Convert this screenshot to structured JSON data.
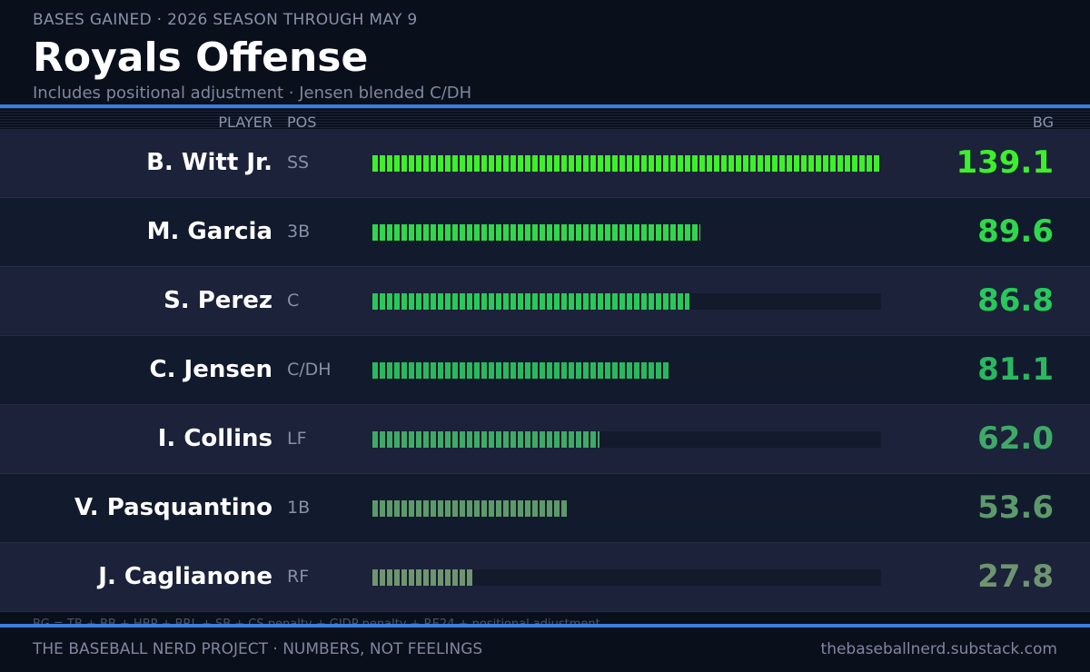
{
  "header": {
    "kicker": "BASES GAINED  ·  2026 SEASON THROUGH MAY 9",
    "title": "Royals Offense",
    "subtitle": "Includes positional adjustment  ·  Jensen blended C/DH"
  },
  "columns": {
    "player": "PLAYER",
    "pos": "POS",
    "bg": "BG"
  },
  "chart_data": {
    "type": "bar",
    "title": "Royals Offense",
    "subtitle": "Includes positional adjustment  ·  Jensen blended C/DH",
    "categories": [
      "B. Witt Jr.",
      "M. Garcia",
      "S. Perez",
      "C. Jensen",
      "I. Collins",
      "V. Pasquantino",
      "J. Caglianone"
    ],
    "positions": [
      "SS",
      "3B",
      "C",
      "C/DH",
      "LF",
      "1B",
      "RF"
    ],
    "values": [
      139.1,
      89.6,
      86.8,
      81.1,
      62.0,
      53.6,
      27.8
    ],
    "value_labels": [
      "139.1",
      "89.6",
      "86.8",
      "81.1",
      "62.0",
      "53.6",
      "27.8"
    ],
    "colors": [
      "#3cf02a",
      "#2fd84a",
      "#28c95a",
      "#2ab85e",
      "#3faa68",
      "#5c9a6a",
      "#6e9470"
    ],
    "xlim": [
      0,
      139.1
    ],
    "orientation": "horizontal",
    "grid": false,
    "legend": "none"
  },
  "footnote": "BG = TB + BB + HBP + BRL + SB + CS penalty + GIDP penalty + RE24 + positional adjustment",
  "footer": {
    "left": "THE BASEBALL NERD PROJECT  ·  NUMBERS, NOT FEELINGS",
    "right": "thebaseballnerd.substack.com"
  }
}
